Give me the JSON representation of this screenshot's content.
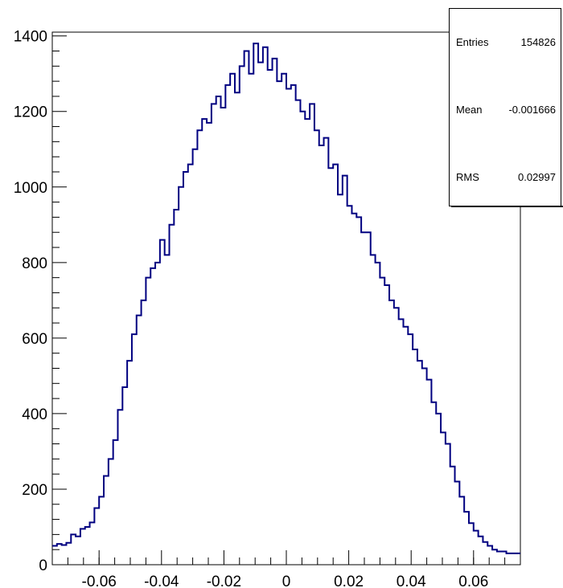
{
  "chart_data": {
    "type": "histogram",
    "title": "",
    "xlabel": "",
    "ylabel": "",
    "xlim": [
      -0.075,
      0.075
    ],
    "ylim": [
      0,
      1410
    ],
    "xticks": [
      "-0.06",
      "-0.04",
      "-0.02",
      "0",
      "0.02",
      "0.04",
      "0.06"
    ],
    "xtick_values": [
      -0.06,
      -0.04,
      -0.02,
      0,
      0.02,
      0.04,
      0.06
    ],
    "yticks": [
      "0",
      "200",
      "400",
      "600",
      "800",
      "1000",
      "1200",
      "1400"
    ],
    "ytick_values": [
      0,
      200,
      400,
      600,
      800,
      1000,
      1200,
      1400
    ],
    "line_color": "#000080",
    "bin_width": 0.0015,
    "bin_edges_x": [
      -0.075,
      -0.0735,
      -0.072,
      -0.0705,
      -0.069,
      -0.0675,
      -0.066,
      -0.0645,
      -0.063,
      -0.0615,
      -0.06,
      -0.0585,
      -0.057,
      -0.0555,
      -0.054,
      -0.0525,
      -0.051,
      -0.0495,
      -0.048,
      -0.0465,
      -0.045,
      -0.0435,
      -0.042,
      -0.0405,
      -0.039,
      -0.0375,
      -0.036,
      -0.0345,
      -0.033,
      -0.0315,
      -0.03,
      -0.0285,
      -0.027,
      -0.0255,
      -0.024,
      -0.0225,
      -0.021,
      -0.0195,
      -0.018,
      -0.0165,
      -0.015,
      -0.0135,
      -0.012,
      -0.0105,
      -0.009,
      -0.0075,
      -0.006,
      -0.0045,
      -0.003,
      -0.0015,
      0,
      0.0015,
      0.003,
      0.0045,
      0.006,
      0.0075,
      0.009,
      0.0105,
      0.012,
      0.0135,
      0.015,
      0.0165,
      0.018,
      0.0195,
      0.021,
      0.0225,
      0.024,
      0.0255,
      0.027,
      0.0285,
      0.03,
      0.0315,
      0.033,
      0.0345,
      0.036,
      0.0375,
      0.039,
      0.0405,
      0.042,
      0.0435,
      0.045,
      0.0465,
      0.048,
      0.0495,
      0.051,
      0.0525,
      0.054,
      0.0555,
      0.057,
      0.0585,
      0.06,
      0.0615,
      0.063,
      0.0645,
      0.066,
      0.0675,
      0.069,
      0.0705,
      0.072,
      0.0735
    ],
    "values": [
      50,
      55,
      52,
      58,
      80,
      75,
      95,
      100,
      112,
      150,
      180,
      235,
      280,
      330,
      410,
      470,
      540,
      610,
      660,
      700,
      760,
      785,
      800,
      860,
      820,
      900,
      940,
      1000,
      1040,
      1060,
      1100,
      1150,
      1180,
      1170,
      1220,
      1240,
      1210,
      1270,
      1300,
      1250,
      1320,
      1360,
      1300,
      1380,
      1330,
      1370,
      1310,
      1340,
      1280,
      1300,
      1260,
      1270,
      1230,
      1200,
      1180,
      1220,
      1150,
      1110,
      1130,
      1050,
      1060,
      980,
      1030,
      950,
      930,
      920,
      880,
      880,
      820,
      800,
      760,
      740,
      700,
      680,
      650,
      630,
      610,
      570,
      540,
      520,
      490,
      430,
      400,
      350,
      320,
      260,
      220,
      180,
      140,
      110,
      90,
      75,
      60,
      50,
      40,
      35,
      35,
      30,
      30,
      30
    ],
    "stats": {
      "entries_label": "Entries",
      "entries_value": "154826",
      "mean_label": "Mean",
      "mean_value": "-0.001666",
      "rms_label": "RMS",
      "rms_value": "0.02997"
    }
  }
}
